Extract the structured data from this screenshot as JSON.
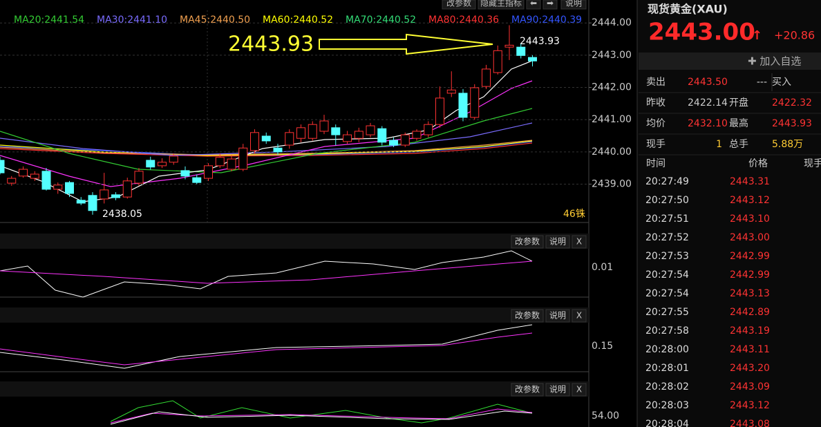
{
  "toolbar": {
    "buttons": [
      "改参数",
      "隐藏主指标",
      "⬅",
      "➡",
      "说明"
    ]
  },
  "ma_legend": [
    {
      "text": "MA20:2441.54",
      "color": "#33cc33"
    },
    {
      "text": "MA30:2441.10",
      "color": "#7a6cff"
    },
    {
      "text": "MA45:2440.50",
      "color": "#f0a050"
    },
    {
      "text": "MA60:2440.52",
      "color": "#ffff00"
    },
    {
      "text": "MA70:2440.52",
      "color": "#33dd77"
    },
    {
      "text": "MA80:2440.36",
      "color": "#ff3333"
    },
    {
      "text": "MA90:2440.39",
      "color": "#3355ff"
    }
  ],
  "chart_data": {
    "type": "candlestick",
    "up_color": "#ff3232",
    "down_color": "#54ffff",
    "ylim": [
      2437.81,
      2444.39
    ],
    "yticks": [
      {
        "value": 2439,
        "label": "2439.00"
      },
      {
        "value": 2440,
        "label": "2440.00"
      },
      {
        "value": 2441,
        "label": "2441.00"
      },
      {
        "value": 2442,
        "label": "2442.00"
      },
      {
        "value": 2443,
        "label": "2443.00"
      },
      {
        "value": 2444,
        "label": "2444.00"
      }
    ],
    "grid": true,
    "open": [
      2439.74,
      2439.03,
      2439.25,
      2439.18,
      2439.4,
      2438.84,
      2439.05,
      2438.5,
      2438.65,
      2438.54,
      2438.67,
      2438.6,
      2439.03,
      2439.74,
      2439.57,
      2439.68,
      2439.42,
      2439.2,
      2439.18,
      2439.57,
      2439.46,
      2439.46,
      2440.04,
      2440.49,
      2440.12,
      2440.21,
      2440.42,
      2440.42,
      2440.64,
      2440.75,
      2440.32,
      2440.42,
      2440.53,
      2440.72,
      2440.36,
      2440.21,
      2440.42,
      2440.53,
      2440.85,
      2441.82,
      2441.82,
      2441.07,
      2442.03,
      2442.46,
      2443.25,
      2443.25,
      2442.93
    ],
    "high": [
      2439.85,
      2439.25,
      2439.55,
      2439.4,
      2439.5,
      2439.05,
      2439.1,
      2438.6,
      2438.75,
      2439.35,
      2438.75,
      2439.2,
      2439.5,
      2439.85,
      2439.8,
      2439.95,
      2439.55,
      2439.3,
      2439.65,
      2439.95,
      2439.9,
      2440.25,
      2440.7,
      2440.6,
      2440.25,
      2440.7,
      2440.85,
      2440.95,
      2441.15,
      2440.85,
      2440.65,
      2440.75,
      2440.9,
      2440.8,
      2440.45,
      2440.6,
      2440.7,
      2440.95,
      2442.03,
      2442.5,
      2441.95,
      2442.1,
      2442.7,
      2443.3,
      2443.93,
      2443.35,
      2443.0
    ],
    "low": [
      2439.3,
      2438.95,
      2439.2,
      2439.1,
      2438.8,
      2438.7,
      2438.6,
      2438.35,
      2438.05,
      2438.4,
      2438.5,
      2438.55,
      2438.95,
      2439.45,
      2439.5,
      2439.6,
      2439.15,
      2439.0,
      2439.1,
      2439.5,
      2439.4,
      2439.4,
      2439.95,
      2440.25,
      2439.9,
      2440.1,
      2440.3,
      2440.35,
      2440.55,
      2440.2,
      2440.25,
      2440.3,
      2440.45,
      2440.2,
      2440.15,
      2440.15,
      2440.35,
      2440.45,
      2440.75,
      2441.7,
      2440.95,
      2441.0,
      2441.95,
      2442.4,
      2442.85,
      2442.9,
      2442.65
    ],
    "close": [
      2439.35,
      2439.18,
      2439.46,
      2439.31,
      2438.84,
      2438.97,
      2438.71,
      2438.41,
      2438.18,
      2438.82,
      2438.58,
      2439.1,
      2439.4,
      2439.53,
      2439.68,
      2439.87,
      2439.25,
      2439.05,
      2439.57,
      2439.83,
      2439.78,
      2440.12,
      2440.6,
      2440.34,
      2440.0,
      2440.6,
      2440.75,
      2440.85,
      2440.96,
      2440.53,
      2440.53,
      2440.64,
      2440.81,
      2440.3,
      2440.21,
      2440.53,
      2440.64,
      2440.85,
      2441.67,
      2441.92,
      2441.07,
      2441.99,
      2442.57,
      2443.14,
      2443.31,
      2442.99,
      2442.82
    ],
    "annotations": {
      "big": "2443.93",
      "high_label": "2443.93",
      "low_label": "2438.05",
      "period": "46铢"
    }
  },
  "sub_panels": [
    {
      "buttons": [
        "改参数",
        "说明",
        "X"
      ],
      "value": "0.01"
    },
    {
      "buttons": [
        "改参数",
        "说明",
        "X"
      ],
      "value": "0.15"
    },
    {
      "buttons": [
        "改参数",
        "说明",
        "X"
      ],
      "value": "54.00"
    }
  ],
  "quote": {
    "title": "现货黄金(XAU)",
    "price": "2443.00",
    "arrow": "↑",
    "change": "+20.86",
    "add_button": "✚ 加入自选",
    "rows": [
      [
        "卖出",
        "2443.50",
        "---",
        "买入"
      ],
      [
        "昨收",
        "2422.14",
        "开盘",
        "2422.32"
      ],
      [
        "均价",
        "2432.10",
        "最高",
        "2443.93"
      ],
      [
        "现手",
        "1",
        "总手",
        "5.88万"
      ]
    ],
    "trade_header": [
      "时间",
      "价格",
      "现手"
    ],
    "trades": [
      [
        "20:27:49",
        "2443.31"
      ],
      [
        "20:27:50",
        "2443.12"
      ],
      [
        "20:27:51",
        "2443.10"
      ],
      [
        "20:27:52",
        "2443.00"
      ],
      [
        "20:27:53",
        "2442.99"
      ],
      [
        "20:27:54",
        "2442.99"
      ],
      [
        "20:27:54",
        "2443.13"
      ],
      [
        "20:27:55",
        "2442.89"
      ],
      [
        "20:27:58",
        "2443.19"
      ],
      [
        "20:28:00",
        "2443.11"
      ],
      [
        "20:28:01",
        "2443.20"
      ],
      [
        "20:28:02",
        "2443.09"
      ],
      [
        "20:28:03",
        "2443.12"
      ],
      [
        "20:28:04",
        "2443.08"
      ]
    ]
  }
}
